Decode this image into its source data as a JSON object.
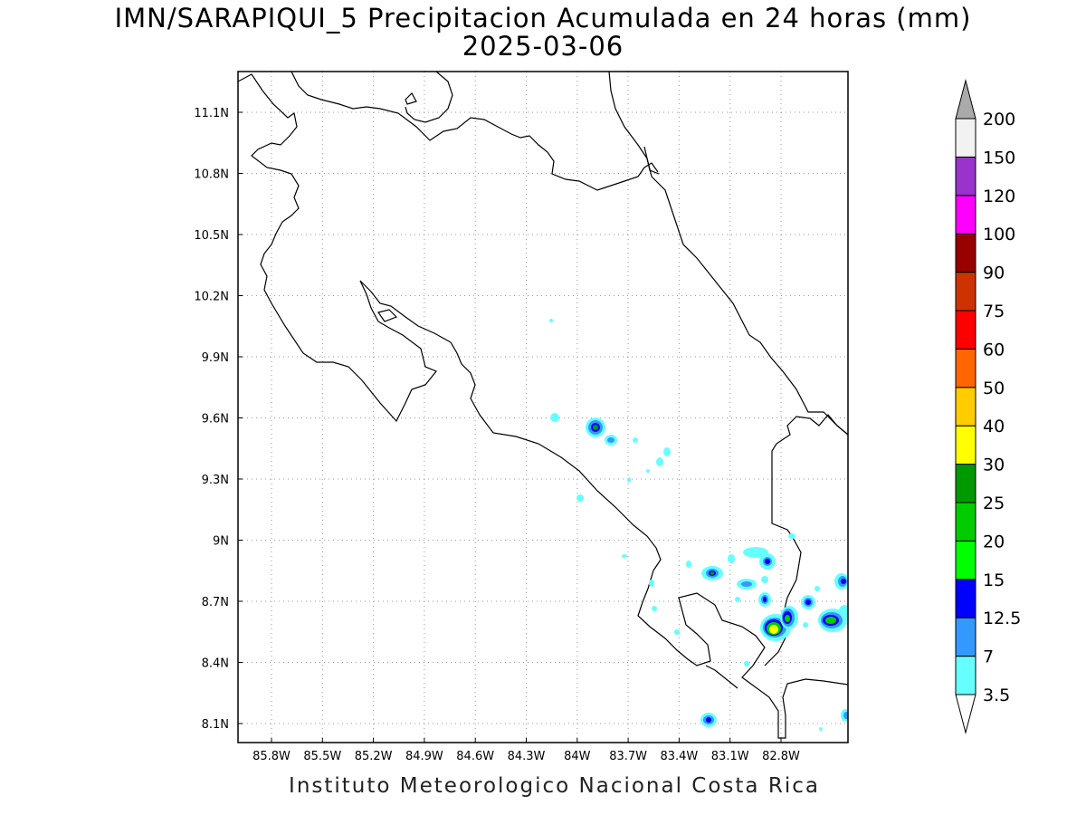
{
  "title": {
    "line1": "IMN/SARAPIQUI_5 Precipitacion Acumulada en 24 horas (mm)",
    "line2": "2025-03-06"
  },
  "footer": "Instituto Meteorologico Nacional Costa Rica",
  "map": {
    "lon_range": [
      -86.0,
      -83.0
    ],
    "lat_range": [
      8.0,
      11.3
    ],
    "lon_ticks": [
      "85.8W",
      "85.5W",
      "85.2W",
      "84.9W",
      "84.6W",
      "84.3W",
      "84W",
      "83.7W",
      "83.4W",
      "83.1W",
      "82.8W"
    ],
    "lat_ticks": [
      "11.1N",
      "10.8N",
      "10.5N",
      "10.2N",
      "9.9N",
      "9.6N",
      "9.3N",
      "9N",
      "8.7N",
      "8.4N",
      "8.1N"
    ],
    "grid": "dotted",
    "land_color": "#ffffff",
    "coast_color": "#000000"
  },
  "colorbar": {
    "labels": [
      "3.5",
      "7",
      "12.5",
      "15",
      "20",
      "25",
      "30",
      "40",
      "50",
      "60",
      "75",
      "90",
      "100",
      "120",
      "150",
      "200"
    ],
    "colors": [
      "#66ffff",
      "#3399ff",
      "#0000ff",
      "#00ff00",
      "#00cc00",
      "#009900",
      "#ffff00",
      "#ffcc00",
      "#ff6600",
      "#ff0000",
      "#cc3300",
      "#990000",
      "#ff00ff",
      "#9933cc",
      "#f2f2f2",
      "#aaaaaa"
    ]
  }
}
